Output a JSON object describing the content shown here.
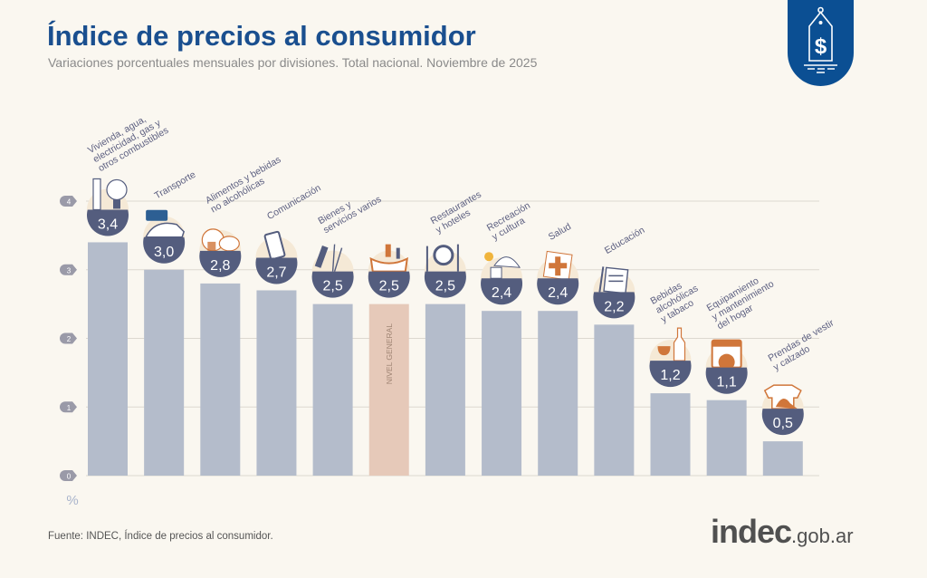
{
  "header": {
    "title": "Índice de precios al consumidor",
    "subtitle": "Variaciones porcentuales mensuales por divisiones. Total nacional. Noviembre de 2025"
  },
  "footer": {
    "source": "Fuente: INDEC, Índice de precios al consumidor.",
    "brand_main": "indec",
    "brand_suffix": ".gob.ar"
  },
  "badge_icon": "price-tag-dollar-icon",
  "colors": {
    "title": "#1a4f8f",
    "bar": "#b4bccb",
    "highlight_bar": "#e6c9b9",
    "value_bowl": "#545d7e",
    "badge": "#0b4f93",
    "icon_accent": "#d0763a"
  },
  "chart_data": {
    "type": "bar",
    "title": "Índice de precios al consumidor",
    "ylabel": "%",
    "ylim": [
      0,
      4
    ],
    "yticks": [
      0,
      1,
      2,
      3,
      4
    ],
    "grid": true,
    "highlight": "Nivel general",
    "categories": [
      {
        "label": [
          "Vivienda, agua,",
          "electricidad, gas y",
          "otros combustibles"
        ],
        "value": 3.4,
        "display": "3,4",
        "icon": "faucet-lightbulb-icon"
      },
      {
        "label": [
          "Transporte"
        ],
        "value": 3.0,
        "display": "3,0",
        "icon": "sube-car-icon"
      },
      {
        "label": [
          "Alimentos y bebidas",
          "no alcohólicas"
        ],
        "value": 2.8,
        "display": "2,8",
        "icon": "food-chicken-icon"
      },
      {
        "label": [
          "Comunicación"
        ],
        "value": 2.7,
        "display": "2,7",
        "icon": "smartphone-icon"
      },
      {
        "label": [
          "Bienes y",
          "servicios varios"
        ],
        "value": 2.5,
        "display": "2,5",
        "icon": "comb-scissors-icon"
      },
      {
        "label": [],
        "bar_label": "NIVEL GENERAL",
        "value": 2.5,
        "display": "2,5",
        "icon": "shopping-bag-icon",
        "highlight": true
      },
      {
        "label": [
          "Restaurantes",
          "y hoteles"
        ],
        "value": 2.5,
        "display": "2,5",
        "icon": "plate-cutlery-icon"
      },
      {
        "label": [
          "Recreación",
          "y cultura"
        ],
        "value": 2.4,
        "display": "2,4",
        "icon": "sun-umbrella-icon"
      },
      {
        "label": [
          "Salud"
        ],
        "value": 2.4,
        "display": "2,4",
        "icon": "medical-cross-icon"
      },
      {
        "label": [
          "Educación"
        ],
        "value": 2.2,
        "display": "2,2",
        "icon": "notebook-pencil-icon"
      },
      {
        "label": [
          "Bebidas",
          "alcohólicas",
          "y tabaco"
        ],
        "value": 1.2,
        "display": "1,2",
        "icon": "wine-bottle-icon"
      },
      {
        "label": [
          "Equipamiento",
          "y mantenimiento",
          "del hogar"
        ],
        "value": 1.1,
        "display": "1,1",
        "icon": "washing-machine-icon"
      },
      {
        "label": [
          "Prendas de vestir",
          "y calzado"
        ],
        "value": 0.5,
        "display": "0,5",
        "icon": "tshirt-shoe-icon"
      }
    ]
  }
}
